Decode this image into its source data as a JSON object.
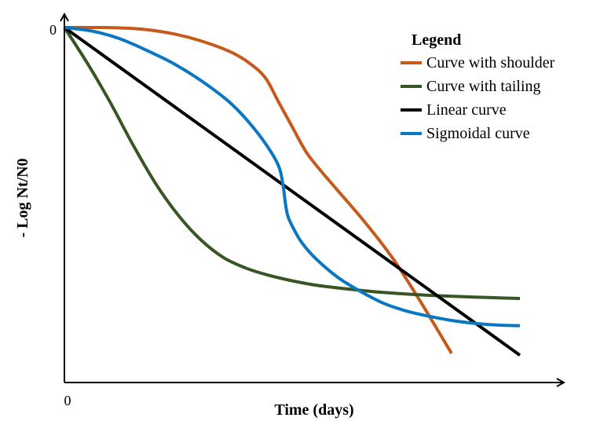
{
  "chart_data": {
    "type": "line",
    "title": "",
    "xlabel": "Time (days)",
    "ylabel": "- Log Nt/N0",
    "x_tick_labels": [
      "0"
    ],
    "y_tick_labels": [
      "0"
    ],
    "xlim": [
      0,
      100
    ],
    "ylim": [
      0,
      100
    ],
    "grid": false,
    "legend": {
      "title": "Legend",
      "placement": "top-right"
    },
    "series": [
      {
        "name": "Curve with shoulder",
        "color": "#c55a1c",
        "x": [
          0,
          6,
          12,
          18,
          24,
          30,
          36,
          40,
          44,
          47,
          50,
          53,
          56,
          60,
          66,
          72,
          78,
          85
        ],
        "y": [
          0,
          0,
          0.1,
          0.6,
          1.8,
          3.8,
          6.6,
          9.5,
          14,
          21,
          28,
          35,
          40,
          46,
          55,
          65,
          77,
          92
        ]
      },
      {
        "name": "Curve with tailing",
        "color": "#375623",
        "x": [
          0,
          5,
          10,
          15,
          20,
          25,
          30,
          35,
          40,
          45,
          50,
          55,
          60,
          70,
          80,
          90,
          100
        ],
        "y": [
          0,
          10,
          21,
          33,
          44,
          53,
          60,
          65,
          68,
          70,
          71.5,
          72.7,
          73.5,
          74.8,
          75.6,
          76.1,
          76.5
        ]
      },
      {
        "name": "Linear curve",
        "color": "#000000",
        "x": [
          0,
          100
        ],
        "y": [
          0,
          92.5
        ]
      },
      {
        "name": "Sigmoidal curve",
        "color": "#0a77c2",
        "x": [
          0,
          6,
          12,
          18,
          24,
          30,
          36,
          40,
          44,
          47,
          48,
          48.5,
          49,
          50,
          52,
          55,
          60,
          65,
          70,
          75,
          80,
          85,
          90,
          95,
          100
        ],
        "y": [
          0,
          1,
          3.1,
          6.4,
          10.2,
          15,
          20.8,
          26,
          32.5,
          39,
          44.5,
          49.5,
          53,
          56,
          60.5,
          65,
          70.5,
          74.5,
          77.8,
          80,
          81.5,
          82.7,
          83.5,
          84,
          84.2
        ]
      }
    ]
  }
}
